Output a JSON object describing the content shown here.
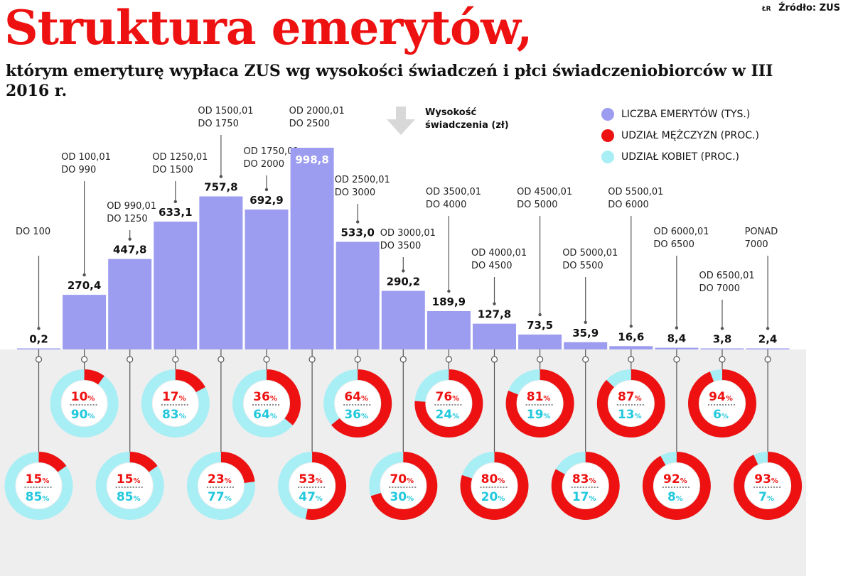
{
  "header": {
    "title": "Struktura emerytów,",
    "subtitle": "którym emeryturę wypłaca ZUS wg wysokości świadczeń i płci świadczeniobiorców w III 2016 r.",
    "source": "Źródło: ZUS",
    "author": "ŁR"
  },
  "legend": {
    "height_label_1": "Wysokość",
    "height_label_2": "świadczenia (zł)",
    "items": [
      {
        "label": "LICZBA EMERYTÓW (TYS.)",
        "color": "#9c9cf0"
      },
      {
        "label": "UDZIAŁ MĘŻCZYZN (PROC.)",
        "color": "#ee1111"
      },
      {
        "label": "UDZIAŁ KOBIET (PROC.)",
        "color": "#a8eef5"
      }
    ]
  },
  "colors": {
    "title": "#ee1111",
    "bar": "#9c9cf0",
    "men": "#ee1111",
    "women": "#a8eef5",
    "women_text": "#22c8dc",
    "panel": "#eeeeee"
  },
  "chart_data": {
    "type": "bar",
    "unit_values": "tys.",
    "categories": [
      [
        "DO 100"
      ],
      [
        "OD 100,01",
        "DO 990"
      ],
      [
        "OD 990,01",
        "DO 1250"
      ],
      [
        "OD 1250,01",
        "DO 1500"
      ],
      [
        "OD 1500,01",
        "DO 1750"
      ],
      [
        "OD 1750,01",
        "DO 2000"
      ],
      [
        "OD 2000,01",
        "DO 2500"
      ],
      [
        "OD 2500,01",
        "DO 3000"
      ],
      [
        "OD 3000,01",
        "DO 3500"
      ],
      [
        "OD 3500,01",
        "DO 4000"
      ],
      [
        "OD 4000,01",
        "DO 4500"
      ],
      [
        "OD 4500,01",
        "DO 5000"
      ],
      [
        "OD 5000,01",
        "DO 5500"
      ],
      [
        "OD 5500,01",
        "DO 6000"
      ],
      [
        "OD 6000,01",
        "DO 6500"
      ],
      [
        "OD 6500,01",
        "DO 7000"
      ],
      [
        "PONAD",
        "7000"
      ]
    ],
    "values": [
      0.2,
      270.4,
      447.8,
      633.1,
      757.8,
      692.9,
      998.8,
      533.0,
      290.2,
      189.9,
      127.8,
      73.5,
      35.9,
      16.6,
      8.4,
      3.8,
      2.4
    ],
    "value_labels": [
      "0,2",
      "270,4",
      "447,8",
      "633,1",
      "757,8",
      "692,9",
      "998,8",
      "533,0",
      "290,2",
      "189,9",
      "127,8",
      "73,5",
      "35,9",
      "16,6",
      "8,4",
      "3,8",
      "2,4"
    ],
    "men_pct": [
      15,
      10,
      15,
      17,
      23,
      36,
      53,
      64,
      70,
      76,
      80,
      81,
      83,
      87,
      92,
      94,
      93
    ],
    "women_pct": [
      85,
      90,
      85,
      83,
      77,
      64,
      47,
      36,
      30,
      24,
      20,
      19,
      17,
      13,
      8,
      6,
      7
    ],
    "pct_symbol": "%",
    "ylim": [
      0,
      998.8
    ]
  }
}
